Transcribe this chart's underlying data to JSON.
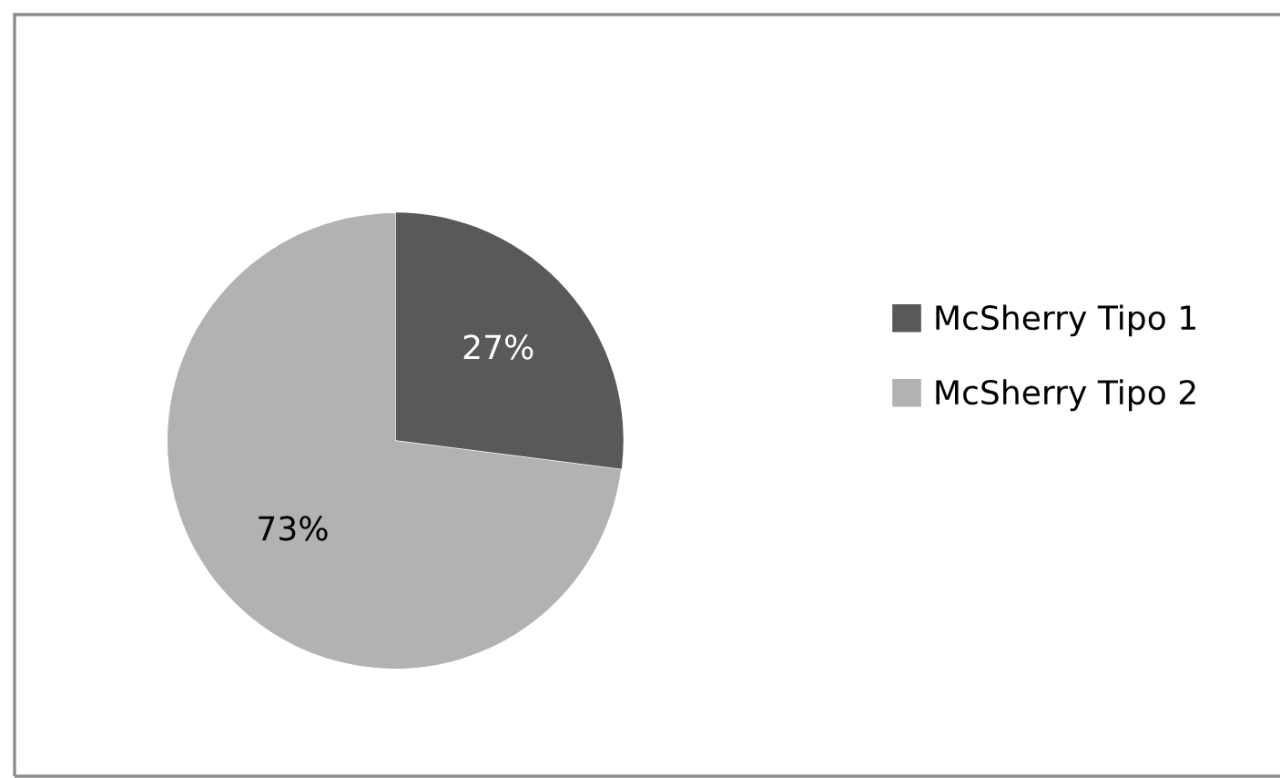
{
  "chart_data": {
    "type": "pie",
    "categories": [
      "McSherry Tipo 1",
      "McSherry Tipo 2"
    ],
    "values": [
      27,
      73
    ],
    "colors": [
      "#595959",
      "#b2b2b2"
    ],
    "value_labels": [
      "27%",
      "73%"
    ],
    "legend": "right"
  }
}
